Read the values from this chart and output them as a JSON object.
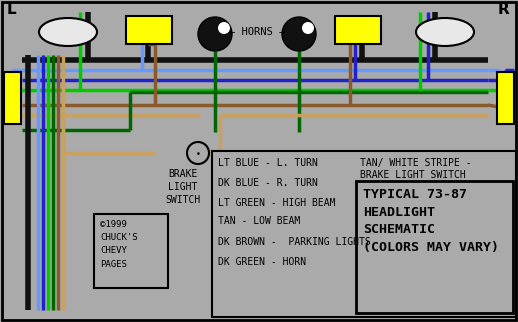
{
  "bg_color": "#aaaaaa",
  "border_color": "#000000",
  "title": "TYPICAL 73-87\nHEADLIGHT\nSCHEMATIC\n(COLORS MAY VARY)",
  "copyright": "©1999\nCHUCK'S\nCHEVY\nPAGES",
  "label_L": "L",
  "label_R": "R",
  "horns_label": "← HORNS →",
  "brake_label": "BRAKE\nLIGHT\nSWITCH",
  "legend_items": [
    "LT BLUE - L. TURN",
    "DK BLUE - R. TURN",
    "LT GREEN - HIGH BEAM",
    "TAN - LOW BEAM",
    "DK BROWN -  PARKING LIGHTS",
    "DK GREEN - HORN"
  ],
  "tan_white_line1": "TAN/ WHITE STRIPE -",
  "tan_white_line2": "BRAKE LIGHT SWITCH",
  "title_box_text": "TYPICAL 73-87\nHEADLIGHT\nSCHEMATIC\n(COLORS MAY VARY)",
  "wire_colors": {
    "black": "#111111",
    "lt_blue": "#6699ff",
    "dk_blue": "#2222cc",
    "lt_green": "#00cc00",
    "dk_green": "#006600",
    "brown": "#8B5A2B",
    "tan": "#c8a060"
  },
  "yellow_rect_color": "#ffff00",
  "headlight_color": "#e8e8e8",
  "figsize": [
    5.18,
    3.22
  ],
  "dpi": 100
}
